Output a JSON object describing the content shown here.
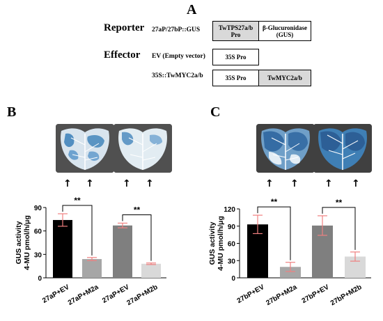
{
  "panel_a": {
    "letter": "A",
    "reporter_label": "Reporter",
    "reporter_construct": "27aP/27bP::GUS",
    "reporter_box1": "TwTPS27a/b Pro",
    "reporter_box2": "β-Glucuronidase (GUS)",
    "effector_label": "Effector",
    "ev_construct": "EV (Empty vector)",
    "ev_box": "35S Pro",
    "myc_construct": "35S::TwMYC2a/b",
    "myc_box1": "35S Pro",
    "myc_box2": "TwMYC2a/b"
  },
  "panel_b": {
    "letter": "B",
    "significance": [
      "**",
      "**"
    ]
  },
  "panel_c": {
    "letter": "C",
    "significance": [
      "**",
      "**"
    ]
  },
  "colors": {
    "bar1": "#000000",
    "bar2": "#a6a6a6",
    "bar3": "#7f7f7f",
    "bar4": "#d9d9d9",
    "error": "#f08080",
    "leaf_blue": "#3a7fb8"
  },
  "chart_data": [
    {
      "type": "bar",
      "panel": "B",
      "categories": [
        "27aP+EV",
        "27aP+M2a",
        "27aP+EV",
        "27aP+M2b"
      ],
      "values": [
        74,
        24,
        67,
        18
      ],
      "errors": [
        8,
        2,
        3,
        1
      ],
      "ylabel": "GUS activity\n4-MU pmol/h/μg",
      "ylim": [
        0,
        90
      ],
      "yticks": [
        0,
        30,
        60,
        90
      ],
      "grid": false
    },
    {
      "type": "bar",
      "panel": "C",
      "categories": [
        "27bP+EV",
        "27bP+M2a",
        "27bP+EV",
        "27bP+M2b"
      ],
      "values": [
        93,
        19,
        91,
        37
      ],
      "errors": [
        16,
        8,
        17,
        8
      ],
      "ylabel": "GUS activity\n4-MU pmol/h/μg",
      "ylim": [
        0,
        120
      ],
      "yticks": [
        0,
        30,
        60,
        90,
        120
      ],
      "grid": false
    }
  ]
}
